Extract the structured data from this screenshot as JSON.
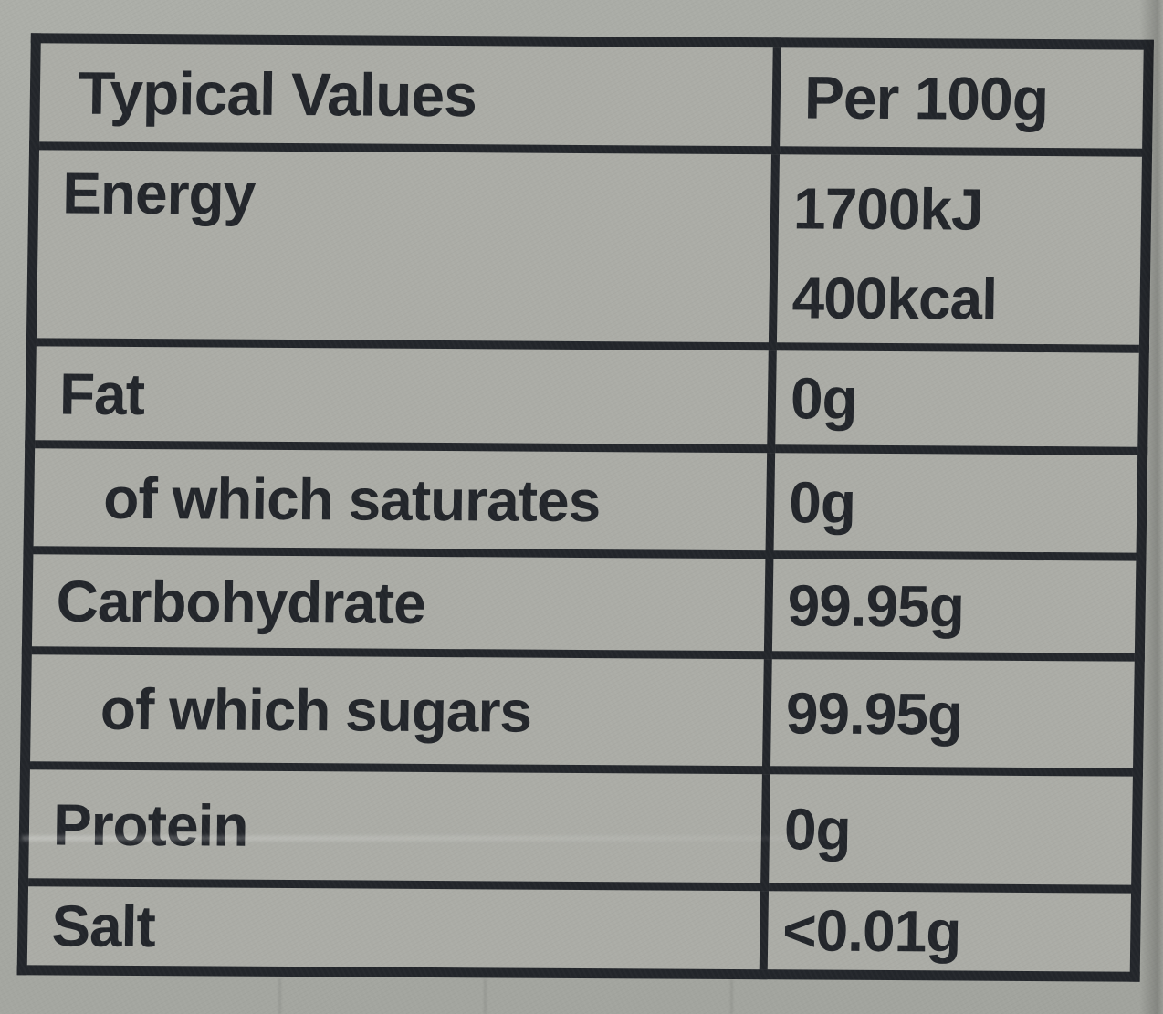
{
  "theme": {
    "ink": "#23262b",
    "paper": "#a7a9a3",
    "paper-cell": "#abaca6"
  },
  "table": {
    "header": {
      "label": "Typical Values",
      "value": "Per 100g"
    },
    "rows": [
      {
        "label": "Energy",
        "value": "1700kJ",
        "value2": "400kcal",
        "indent": false
      },
      {
        "label": "Fat",
        "value": "0g",
        "indent": false
      },
      {
        "label": "of which saturates",
        "value": "0g",
        "indent": true
      },
      {
        "label": "Carbohydrate",
        "value": "99.95g",
        "indent": false
      },
      {
        "label": "of which sugars",
        "value": "99.95g",
        "indent": true
      },
      {
        "label": "Protein",
        "value": "0g",
        "indent": false
      },
      {
        "label": "Salt",
        "value": "<0.01g",
        "indent": false
      }
    ]
  }
}
